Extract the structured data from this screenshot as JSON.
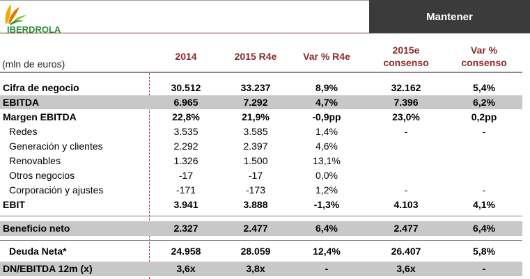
{
  "header": {
    "brand": "IBERDROLA",
    "recommendation": "Mantener",
    "unit_label": "(mln de euros)",
    "columns": [
      "2014",
      "2015 R4e",
      "Var % R4e",
      "2015e consenso",
      "Var % consenso"
    ]
  },
  "rows": [
    {
      "label": "Cifra de negocio",
      "v2014": "30.512",
      "v2015": "33.237",
      "var": "8,9%",
      "cons": "32.162",
      "varc": "5,4%"
    },
    {
      "label": "EBITDA",
      "v2014": "6.965",
      "v2015": "7.292",
      "var": "4,7%",
      "cons": "7.396",
      "varc": "6,2%"
    },
    {
      "label": "Margen EBITDA",
      "v2014": "22,8%",
      "v2015": "21,9%",
      "var": "-0,9pp",
      "cons": "23,0%",
      "varc": "0,2pp"
    },
    {
      "label": "Redes",
      "v2014": "3.535",
      "v2015": "3.585",
      "var": "1,4%",
      "cons": "-",
      "varc": "-"
    },
    {
      "label": "Generación y clientes",
      "v2014": "2.292",
      "v2015": "2.397",
      "var": "4,6%",
      "cons": "",
      "varc": ""
    },
    {
      "label": "Renovables",
      "v2014": "1.326",
      "v2015": "1.500",
      "var": "13,1%",
      "cons": "",
      "varc": ""
    },
    {
      "label": "Otros negocios",
      "v2014": "-17",
      "v2015": "-17",
      "var": "0,0%",
      "cons": "",
      "varc": ""
    },
    {
      "label": "Corporación y ajustes",
      "v2014": "-171",
      "v2015": "-173",
      "var": "1,2%",
      "cons": "-",
      "varc": "-"
    },
    {
      "label": "EBIT",
      "v2014": "3.941",
      "v2015": "3.888",
      "var": "-1,3%",
      "cons": "4.103",
      "varc": "4,1%"
    },
    {
      "label": "Beneficio neto",
      "v2014": "2.327",
      "v2015": "2.477",
      "var": "6,4%",
      "cons": "2.477",
      "varc": "6,4%"
    },
    {
      "label": "Deuda Neta*",
      "v2014": "24.958",
      "v2015": "28.059",
      "var": "12,4%",
      "cons": "26.407",
      "varc": "5,8%"
    },
    {
      "label": "DN/EBITDA 12m (x)",
      "v2014": "3,6x",
      "v2015": "3,8x",
      "var": "-",
      "cons": "3,6x",
      "varc": "-"
    }
  ],
  "colors": {
    "accent": "#8b2a2a",
    "badge_bg": "#3b3b3b",
    "shade": "#c8c8c8",
    "logo_green": "#2e8b3a"
  }
}
